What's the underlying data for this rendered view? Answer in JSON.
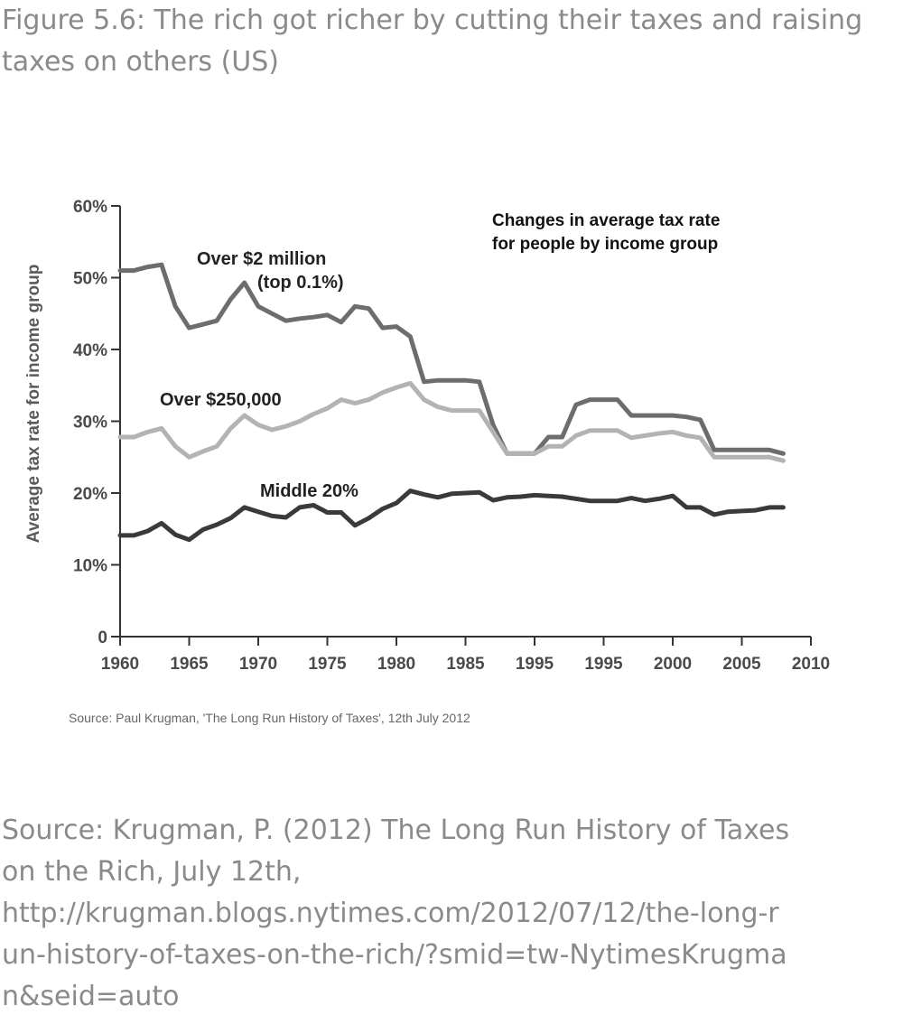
{
  "figure": {
    "title": "Figure 5.6: The rich got richer by cutting their taxes and raising taxes on others (US)"
  },
  "bottom_source": {
    "lines": [
      "Source: Krugman, P. (2012) The Long Run History of Taxes",
      "on the Rich, July 12th,",
      "http://krugman.blogs.nytimes.com/2012/07/12/the-long-r",
      "un-history-of-taxes-on-the-rich/?smid=tw-NytimesKrugma",
      "n&seid=auto"
    ]
  },
  "chart_data": {
    "type": "line",
    "title": "Changes in average tax rate for people by income group",
    "title_lines": [
      "Changes in average tax rate",
      "for people by income group"
    ],
    "ylabel": "Average tax rate for income group",
    "xlabel": "",
    "source": "Source: Paul Krugman, 'The Long Run History of Taxes', 12th July 2012",
    "x_tick_labels": [
      "1960",
      "1965",
      "1970",
      "1975",
      "1980",
      "1985",
      "1995",
      "1995",
      "2000",
      "2005",
      "2010"
    ],
    "y_tick_labels": [
      "60%",
      "50%",
      "40%",
      "30%",
      "20%",
      "10%",
      "0"
    ],
    "ylim": [
      0,
      60
    ],
    "grid": false,
    "x": [
      1960,
      1961,
      1962,
      1963,
      1964,
      1965,
      1966,
      1967,
      1968,
      1969,
      1970,
      1971,
      1972,
      1973,
      1974,
      1975,
      1976,
      1977,
      1978,
      1979,
      1980,
      1981,
      1982,
      1983,
      1984,
      1985,
      1986,
      1987,
      1988,
      1989,
      1990,
      1991,
      1992,
      1993,
      1994,
      1995,
      1996,
      1997,
      1998,
      1999,
      2000,
      2001,
      2002,
      2003,
      2004,
      2005,
      2006,
      2007,
      2008
    ],
    "series": [
      {
        "name": "Over $2 million (top 0.1%)",
        "label_lines": [
          "Over $2 million",
          "(top 0.1%)"
        ],
        "color": "#6d6d6d",
        "values": [
          51.0,
          51.0,
          51.5,
          51.8,
          46.0,
          43.0,
          43.5,
          44.0,
          47.0,
          49.3,
          46.0,
          45.0,
          44.0,
          44.3,
          44.5,
          44.8,
          43.8,
          46.0,
          45.7,
          43.0,
          43.2,
          41.8,
          35.5,
          35.7,
          35.7,
          35.7,
          35.5,
          29.5,
          25.5,
          25.5,
          25.5,
          27.8,
          27.8,
          32.3,
          33.0,
          33.0,
          33.0,
          30.8,
          30.8,
          30.8,
          30.8,
          30.6,
          30.2,
          26.0,
          26.0,
          26.0,
          26.0,
          26.0,
          25.5
        ]
      },
      {
        "name": "Over $250,000",
        "label_lines": [
          "Over $250,000"
        ],
        "color": "#b3b3b3",
        "values": [
          27.8,
          27.8,
          28.5,
          29.0,
          26.5,
          25.0,
          25.8,
          26.5,
          29.0,
          30.8,
          29.5,
          28.8,
          29.3,
          30.0,
          31.0,
          31.8,
          33.0,
          32.5,
          33.0,
          34.0,
          34.7,
          35.3,
          33.0,
          32.0,
          31.5,
          31.5,
          31.5,
          28.5,
          25.5,
          25.5,
          25.5,
          26.5,
          26.5,
          28.0,
          28.7,
          28.7,
          28.7,
          27.7,
          28.0,
          28.3,
          28.5,
          28.0,
          27.7,
          25.0,
          25.0,
          25.0,
          25.0,
          25.0,
          24.5
        ]
      },
      {
        "name": "Middle 20%",
        "label_lines": [
          "Middle 20%"
        ],
        "color": "#3a3a3a",
        "values": [
          14.1,
          14.1,
          14.7,
          15.8,
          14.2,
          13.5,
          14.9,
          15.6,
          16.5,
          18.0,
          17.4,
          16.8,
          16.6,
          18.0,
          18.3,
          17.3,
          17.3,
          15.5,
          16.5,
          17.8,
          18.6,
          20.3,
          19.8,
          19.4,
          19.9,
          20.0,
          20.1,
          19.0,
          19.4,
          19.5,
          19.7,
          19.6,
          19.5,
          19.2,
          18.9,
          18.9,
          18.9,
          19.3,
          18.9,
          19.2,
          19.6,
          18.0,
          18.0,
          17.0,
          17.4,
          17.5,
          17.6,
          18.0,
          18.0
        ]
      }
    ]
  }
}
